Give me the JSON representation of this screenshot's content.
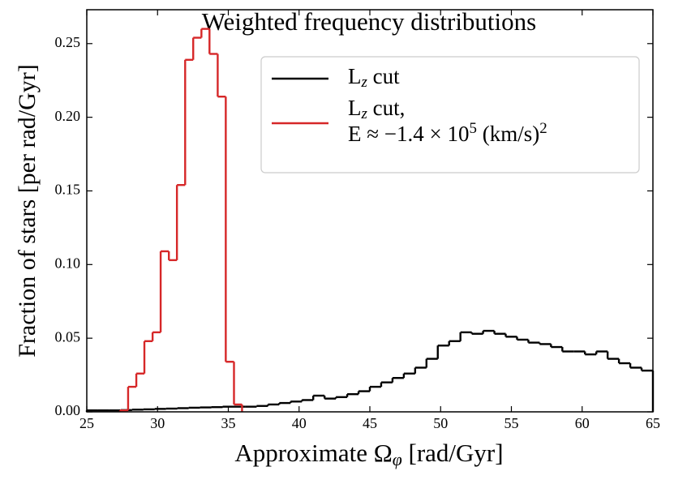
{
  "chart_data": {
    "type": "histogram",
    "title": "Weighted frequency distributions",
    "x_label": "Approximate Ω_φ [rad/Gyr]",
    "y_label": "Fraction of stars [per rad/Gyr]",
    "xlim": [
      25,
      65
    ],
    "ylim": [
      0,
      0.273
    ],
    "xticks": [
      25,
      30,
      35,
      40,
      45,
      50,
      55,
      60,
      65
    ],
    "yticks": [
      {
        "value": 0,
        "label": "0.00"
      },
      {
        "value": 0.05,
        "label": "0.05"
      },
      {
        "value": 0.1,
        "label": "0.10"
      },
      {
        "value": 0.15,
        "label": "0.15"
      },
      {
        "value": 0.2,
        "label": "0.20"
      },
      {
        "value": 0.25,
        "label": "0.25"
      }
    ],
    "legend": "upper right",
    "series": [
      {
        "name": "L_z cut",
        "color": "#000000",
        "bins": [
          25,
          25.8,
          26.6,
          27.4,
          28.2,
          29,
          29.8,
          30.6,
          31.4,
          32.2,
          33,
          33.8,
          34.6,
          35.4,
          36.2,
          37,
          37.8,
          38.6,
          39.4,
          40.2,
          41,
          41.8,
          42.6,
          43.4,
          44.2,
          45,
          45.8,
          46.6,
          47.4,
          48.2,
          49,
          49.8,
          50.6,
          51.4,
          52.2,
          53,
          53.8,
          54.6,
          55.4,
          56.2,
          57,
          57.8,
          58.6,
          59.4,
          60.2,
          61,
          61.8,
          62.6,
          63.4,
          64.2,
          65
        ],
        "values": [
          0.001,
          0.001,
          0.001,
          0.0012,
          0.0015,
          0.0017,
          0.002,
          0.0022,
          0.0025,
          0.0028,
          0.003,
          0.0032,
          0.0035,
          0.0035,
          0.0035,
          0.004,
          0.005,
          0.006,
          0.007,
          0.008,
          0.011,
          0.009,
          0.01,
          0.012,
          0.014,
          0.017,
          0.02,
          0.023,
          0.026,
          0.03,
          0.036,
          0.045,
          0.048,
          0.054,
          0.053,
          0.055,
          0.053,
          0.051,
          0.049,
          0.047,
          0.046,
          0.044,
          0.041,
          0.041,
          0.039,
          0.041,
          0.036,
          0.033,
          0.03,
          0.028
        ]
      },
      {
        "name": "L_z cut,\nE ≈ −1.4 × 10^5 (km/s)^2",
        "color": "#d62728",
        "bins": [
          27.35,
          27.92,
          28.5,
          29.07,
          29.65,
          30.22,
          30.8,
          31.37,
          31.95,
          32.52,
          33.1,
          33.67,
          34.25,
          34.82,
          35.4,
          35.97
        ],
        "values": [
          0.001,
          0.017,
          0.026,
          0.048,
          0.054,
          0.109,
          0.103,
          0.154,
          0.239,
          0.254,
          0.26,
          0.243,
          0.214,
          0.034,
          0.005
        ]
      }
    ]
  }
}
